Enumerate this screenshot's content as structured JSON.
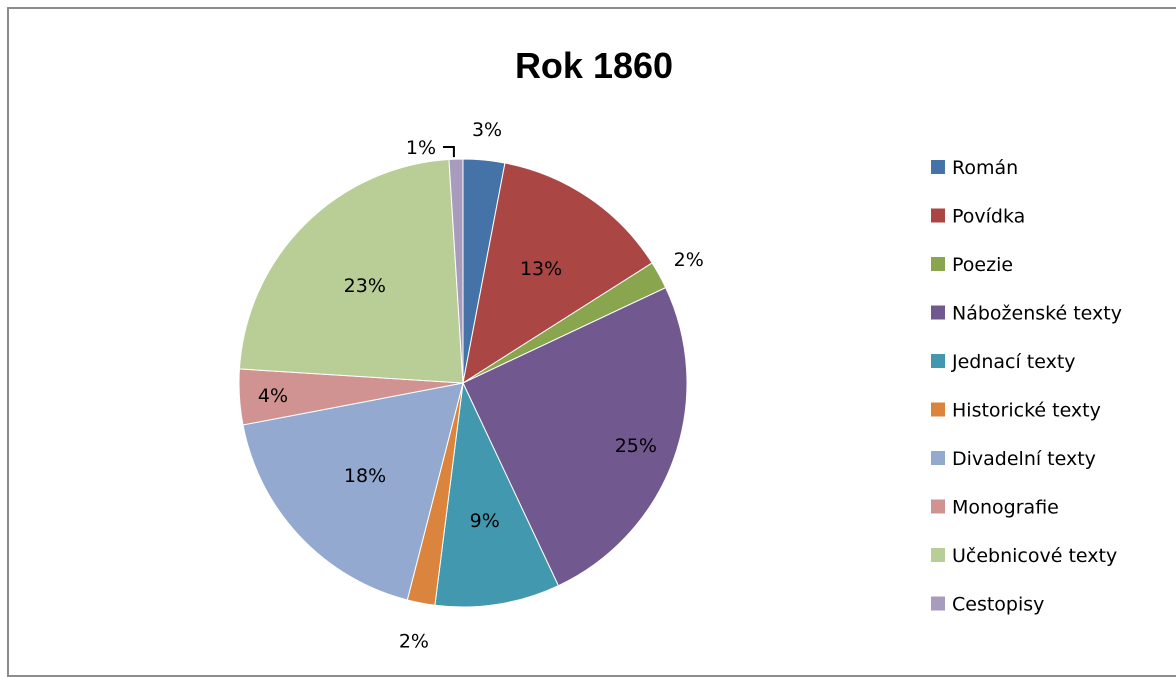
{
  "chart_data": {
    "type": "pie",
    "title": "Rok 1860",
    "legend_position": "right",
    "slices": [
      {
        "name": "Román",
        "value": 3,
        "label": "3%",
        "color": "#4572A7"
      },
      {
        "name": "Povídka",
        "value": 13,
        "label": "13%",
        "color": "#AA4643"
      },
      {
        "name": "Poezie",
        "value": 2,
        "label": "2%",
        "color": "#89A54E"
      },
      {
        "name": "Náboženské texty",
        "value": 25,
        "label": "25%",
        "color": "#71588F"
      },
      {
        "name": "Jednací texty",
        "value": 9,
        "label": "9%",
        "color": "#4198AF"
      },
      {
        "name": "Historické texty",
        "value": 2,
        "label": "2%",
        "color": "#DB843D"
      },
      {
        "name": "Divadelní texty",
        "value": 18,
        "label": "18%",
        "color": "#93A9CF"
      },
      {
        "name": "Monografie",
        "value": 4,
        "label": "4%",
        "color": "#D19392"
      },
      {
        "name": "Učebnicové texty",
        "value": 23,
        "label": "23%",
        "color": "#B9CD96"
      },
      {
        "name": "Cestopisy",
        "value": 1,
        "label": "1%",
        "color": "#A99BBD"
      }
    ]
  }
}
